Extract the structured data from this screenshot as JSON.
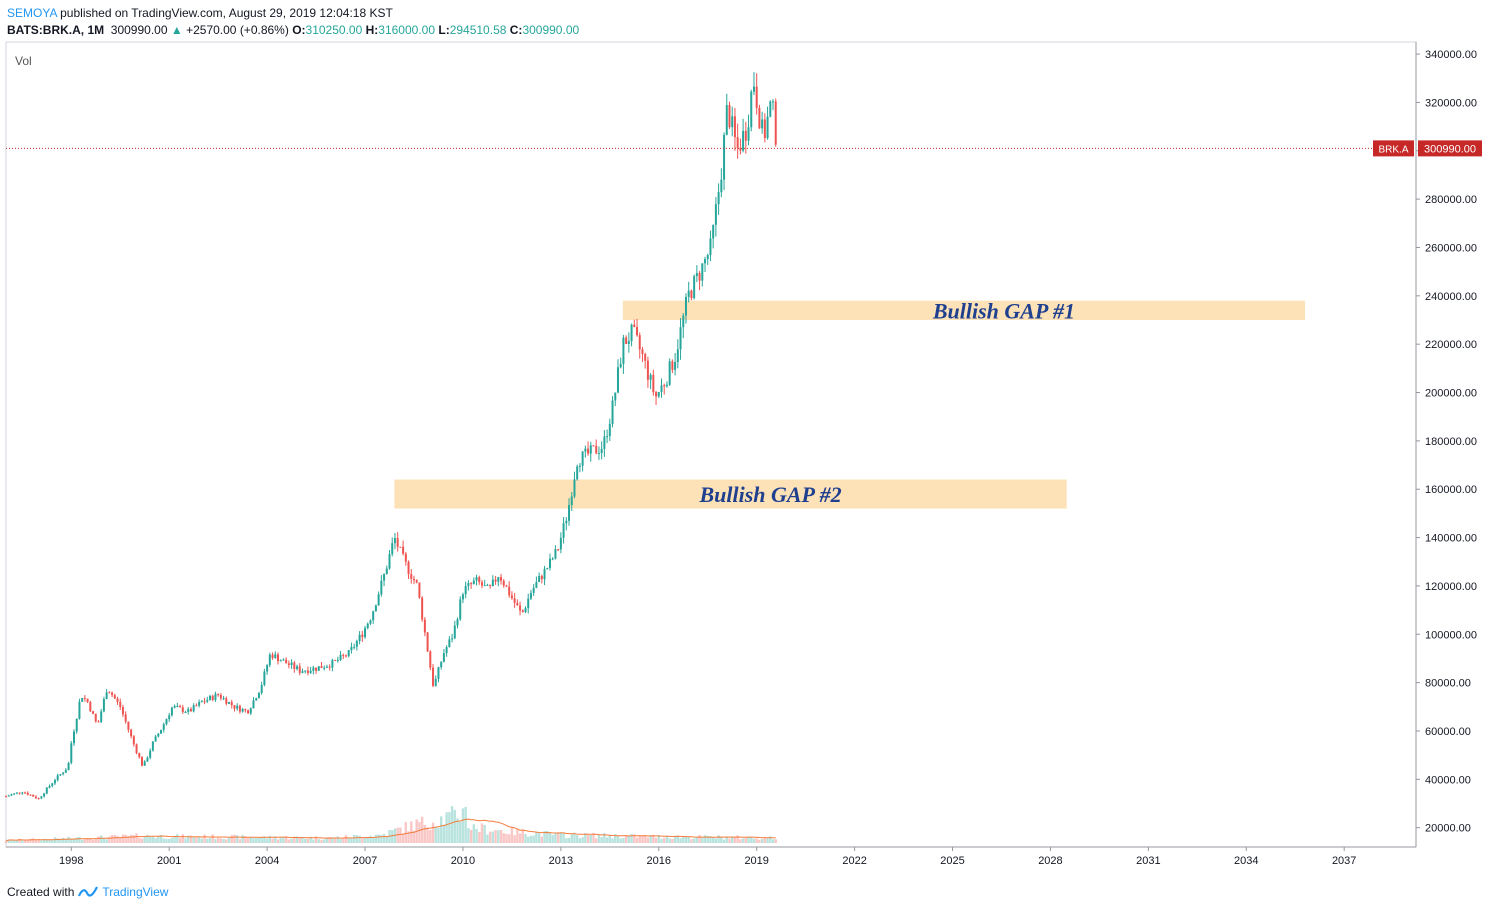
{
  "header": {
    "author": "SEMOYA",
    "published_text": " published on TradingView.com, August 29, 2019 12:04:18 KST",
    "symbol": "BATS:BRK.A, 1M",
    "last": "300990.00",
    "change": "+2570.00 (+0.86%)",
    "o_label": "O:",
    "o_value": "310250.00",
    "h_label": "H:",
    "h_value": "316000.00",
    "l_label": "L:",
    "l_value": "294510.58",
    "c_label": "C:",
    "c_value": "300990.00"
  },
  "footer": {
    "created_with": "Created with",
    "brand": "TradingView"
  },
  "colors": {
    "up": "#26a69a",
    "down": "#ef5350",
    "price_line": "#c62828",
    "gap_fill": "#fde2b8",
    "gap_text": "#1f3f8f",
    "ma": "#f57c3a",
    "axis_text": "#131722"
  },
  "chart_data": {
    "type": "candlestick",
    "symbol": "BRK.A",
    "interval": "1M",
    "pane_label": "Vol",
    "last_price_label": "BRK.A",
    "last_price": 300990,
    "last_price_text": "300990.00",
    "ylim": [
      12000,
      345000
    ],
    "y_ticks": [
      20000,
      40000,
      60000,
      80000,
      100000,
      120000,
      140000,
      160000,
      180000,
      200000,
      220000,
      240000,
      260000,
      280000,
      300000,
      320000,
      340000
    ],
    "y_tick_labels": [
      "20000.00",
      "40000.00",
      "60000.00",
      "80000.00",
      "100000.00",
      "120000.00",
      "140000.00",
      "160000.00",
      "180000.00",
      "200000.00",
      "220000.00",
      "240000.00",
      "260000.00",
      "280000.00",
      "300000.00",
      "320000.00",
      "340000.00"
    ],
    "x_range": [
      1996.0,
      2039.2
    ],
    "x_ticks": [
      1998,
      2001,
      2004,
      2007,
      2010,
      2013,
      2016,
      2019,
      2022,
      2025,
      2028,
      2031,
      2034,
      2037
    ],
    "x_tick_labels": [
      "1998",
      "2001",
      "2004",
      "2007",
      "2010",
      "2013",
      "2016",
      "2019",
      "2022",
      "2025",
      "2028",
      "2031",
      "2034",
      "2037"
    ],
    "price_path": [
      [
        1996.0,
        33000
      ],
      [
        1996.5,
        35000
      ],
      [
        1997.0,
        32000
      ],
      [
        1997.5,
        40000
      ],
      [
        1997.9,
        45000
      ],
      [
        1998.0,
        55000
      ],
      [
        1998.3,
        75000
      ],
      [
        1998.5,
        72000
      ],
      [
        1998.8,
        62000
      ],
      [
        1999.1,
        78000
      ],
      [
        1999.5,
        70000
      ],
      [
        1999.9,
        55000
      ],
      [
        2000.2,
        45000
      ],
      [
        2000.5,
        55000
      ],
      [
        2000.8,
        62000
      ],
      [
        2001.1,
        70000
      ],
      [
        2001.6,
        68000
      ],
      [
        2002.0,
        72000
      ],
      [
        2002.5,
        75000
      ],
      [
        2003.0,
        70000
      ],
      [
        2003.4,
        68000
      ],
      [
        2003.8,
        78000
      ],
      [
        2004.1,
        92000
      ],
      [
        2004.6,
        88000
      ],
      [
        2005.0,
        85000
      ],
      [
        2005.5,
        86000
      ],
      [
        2006.0,
        88000
      ],
      [
        2006.5,
        92000
      ],
      [
        2006.9,
        100000
      ],
      [
        2007.2,
        108000
      ],
      [
        2007.6,
        125000
      ],
      [
        2007.9,
        140000
      ],
      [
        2008.2,
        130000
      ],
      [
        2008.6,
        120000
      ],
      [
        2008.9,
        95000
      ],
      [
        2009.1,
        78000
      ],
      [
        2009.4,
        92000
      ],
      [
        2009.7,
        100000
      ],
      [
        2010.0,
        118000
      ],
      [
        2010.4,
        122000
      ],
      [
        2010.8,
        118000
      ],
      [
        2011.1,
        125000
      ],
      [
        2011.5,
        115000
      ],
      [
        2011.8,
        108000
      ],
      [
        2012.1,
        118000
      ],
      [
        2012.6,
        128000
      ],
      [
        2012.9,
        135000
      ],
      [
        2013.2,
        150000
      ],
      [
        2013.5,
        172000
      ],
      [
        2013.9,
        175000
      ],
      [
        2014.3,
        178000
      ],
      [
        2014.6,
        195000
      ],
      [
        2014.9,
        220000
      ],
      [
        2015.2,
        225000
      ],
      [
        2015.5,
        215000
      ],
      [
        2015.9,
        198000
      ],
      [
        2016.2,
        205000
      ],
      [
        2016.5,
        215000
      ],
      [
        2016.9,
        240000
      ],
      [
        2017.2,
        248000
      ],
      [
        2017.6,
        260000
      ],
      [
        2017.9,
        290000
      ],
      [
        2018.1,
        318000
      ],
      [
        2018.4,
        300000
      ],
      [
        2018.7,
        310000
      ],
      [
        2018.9,
        330000
      ],
      [
        2019.2,
        305000
      ],
      [
        2019.45,
        320000
      ],
      [
        2019.65,
        300990
      ]
    ],
    "volume_path": [
      [
        1996.0,
        1.2
      ],
      [
        1998.0,
        2.0
      ],
      [
        2000.0,
        3.0
      ],
      [
        2003.0,
        2.6
      ],
      [
        2006.0,
        2.2
      ],
      [
        2007.5,
        3.5
      ],
      [
        2008.5,
        8.0
      ],
      [
        2009.2,
        10.0
      ],
      [
        2010.0,
        13.0
      ],
      [
        2010.05,
        30.0
      ],
      [
        2010.15,
        7.0
      ],
      [
        2011.5,
        5.0
      ],
      [
        2013.0,
        3.5
      ],
      [
        2016.0,
        2.8
      ],
      [
        2019.65,
        2.2
      ]
    ],
    "volume_scale_max": 32,
    "annotations": [
      {
        "label": "Bullish GAP #1",
        "x_start": 2014.9,
        "x_end": 2035.8,
        "y_low": 230000,
        "y_high": 238000
      },
      {
        "label": "Bullish GAP #2",
        "x_start": 2007.9,
        "x_end": 2028.5,
        "y_low": 152000,
        "y_high": 164000
      }
    ]
  }
}
